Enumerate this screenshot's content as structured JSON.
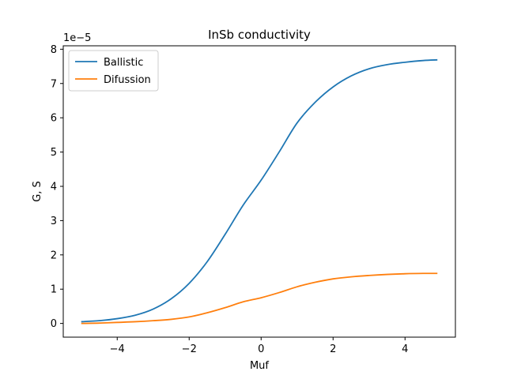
{
  "chart_data": {
    "type": "line",
    "title": "InSb conductivity",
    "xlabel": "Muf",
    "ylabel": "G, S",
    "y_offset_label": "1e−5",
    "xlim": [
      -5.5,
      5.4
    ],
    "ylim": [
      -0.4,
      8.1
    ],
    "y_scale_factor": 1e-05,
    "x_ticks": [
      -4,
      -2,
      0,
      2,
      4
    ],
    "x_tick_labels": [
      "−4",
      "−2",
      "0",
      "2",
      "4"
    ],
    "y_ticks": [
      0,
      1,
      2,
      3,
      4,
      5,
      6,
      7,
      8
    ],
    "y_tick_labels": [
      "0",
      "1",
      "2",
      "3",
      "4",
      "5",
      "6",
      "7",
      "8"
    ],
    "grid": false,
    "legend_position": "top-left",
    "x": [
      -5.0,
      -4.5,
      -4.0,
      -3.5,
      -3.0,
      -2.5,
      -2.0,
      -1.5,
      -1.0,
      -0.5,
      0.0,
      0.5,
      1.0,
      1.5,
      2.0,
      2.5,
      3.0,
      3.5,
      4.0,
      4.5,
      4.9
    ],
    "series": [
      {
        "name": "Ballistic",
        "color": "#1f77b4",
        "values": [
          0.05,
          0.08,
          0.14,
          0.24,
          0.42,
          0.72,
          1.17,
          1.8,
          2.6,
          3.45,
          4.18,
          5.0,
          5.85,
          6.45,
          6.9,
          7.22,
          7.43,
          7.55,
          7.62,
          7.67,
          7.69
        ]
      },
      {
        "name": "Difussion",
        "color": "#ff7f0e",
        "values": [
          0.0,
          0.01,
          0.03,
          0.05,
          0.08,
          0.12,
          0.19,
          0.31,
          0.46,
          0.63,
          0.75,
          0.9,
          1.07,
          1.2,
          1.3,
          1.36,
          1.4,
          1.43,
          1.45,
          1.46,
          1.46
        ]
      }
    ]
  }
}
